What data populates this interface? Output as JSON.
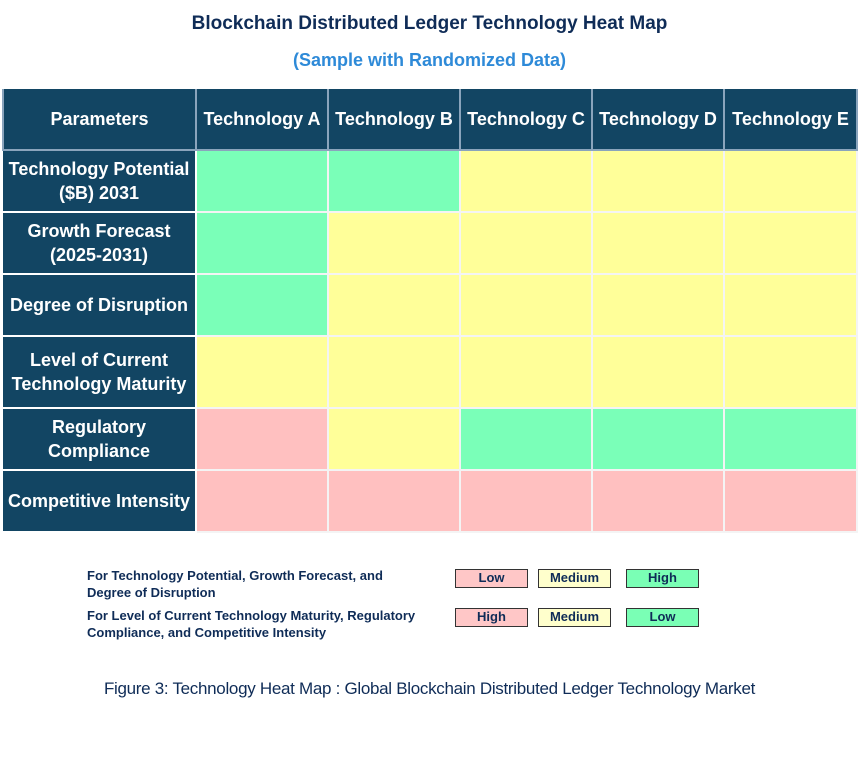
{
  "title": "Blockchain Distributed Ledger Technology Heat Map",
  "subtitle": "(Sample with Randomized Data)",
  "colors": {
    "header": "#124563",
    "High-positive": "#7affb8",
    "Medium": "#ffff99",
    "Low-positive": "#ffc0c0"
  },
  "chart_data": {
    "type": "heatmap",
    "corner_label": "Parameters",
    "columns": [
      "Technology A",
      "Technology B",
      "Technology C",
      "Technology D",
      "Technology E"
    ],
    "rows": [
      {
        "label": "Technology Potential ($B) 2031",
        "scale": "positive",
        "values": [
          "High",
          "High",
          "Medium",
          "Medium",
          "Medium"
        ]
      },
      {
        "label": "Growth Forecast (2025-2031)",
        "scale": "positive",
        "values": [
          "High",
          "Medium",
          "Medium",
          "Medium",
          "Medium"
        ]
      },
      {
        "label": "Degree of Disruption",
        "scale": "positive",
        "values": [
          "High",
          "Medium",
          "Medium",
          "Medium",
          "Medium"
        ]
      },
      {
        "label": "Level of Current Technology Maturity",
        "scale": "negative",
        "values": [
          "Medium",
          "Medium",
          "Medium",
          "Medium",
          "Medium"
        ]
      },
      {
        "label": "Regulatory Compliance",
        "scale": "negative",
        "values": [
          "High",
          "Medium",
          "Low",
          "Low",
          "Low"
        ]
      },
      {
        "label": "Competitive Intensity",
        "scale": "negative",
        "values": [
          "High",
          "High",
          "High",
          "High",
          "High"
        ]
      }
    ],
    "color_scale": {
      "positive": {
        "High": "#7affb8",
        "Medium": "#ffff99",
        "Low": "#ffc0c0"
      },
      "negative": {
        "High": "#ffc0c0",
        "Medium": "#ffff99",
        "Low": "#7affb8"
      }
    }
  },
  "legend": [
    {
      "text": "For Technology Potential, Growth Forecast, and Degree of Disruption",
      "items": [
        {
          "label": "Low",
          "color": "#ffc7c7"
        },
        {
          "label": "Medium",
          "color": "#ffffcc"
        },
        {
          "label": "High",
          "color": "#7affb5"
        }
      ]
    },
    {
      "text": "For Level of Current Technology Maturity, Regulatory Compliance, and Competitive Intensity",
      "items": [
        {
          "label": "High",
          "color": "#ffc7c7"
        },
        {
          "label": "Medium",
          "color": "#ffffcc"
        },
        {
          "label": "Low",
          "color": "#7affb5"
        }
      ]
    }
  ],
  "caption": "Figure 3: Technology Heat Map : Global Blockchain Distributed Ledger Technology Market"
}
